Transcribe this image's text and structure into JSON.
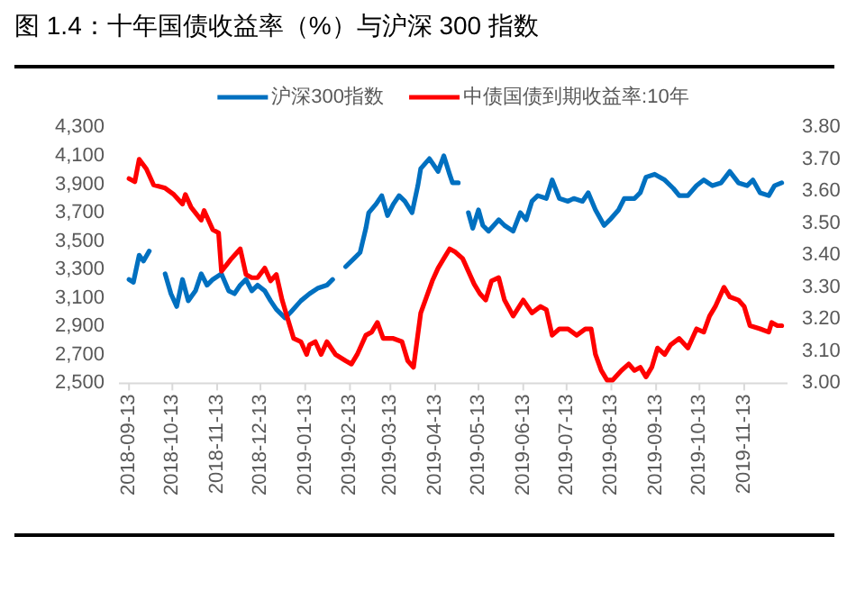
{
  "chart_data": {
    "type": "line",
    "title": "图 1.4：十年国债收益率（%）与沪深 300 指数",
    "legend": "top",
    "xlim": [
      "2018-09-06",
      "2019-12-13"
    ],
    "xticks": [
      "2018-09-13",
      "2018-10-13",
      "2018-11-13",
      "2018-12-13",
      "2019-01-13",
      "2019-02-13",
      "2019-03-13",
      "2019-04-13",
      "2019-05-13",
      "2019-06-13",
      "2019-07-13",
      "2019-08-13",
      "2019-09-13",
      "2019-10-13",
      "2019-11-13"
    ],
    "ylim": [
      2500,
      4300
    ],
    "yticks": [
      {
        "value": 2500,
        "label": "2,500"
      },
      {
        "value": 2700,
        "label": "2,700"
      },
      {
        "value": 2900,
        "label": "2,900"
      },
      {
        "value": 3100,
        "label": "3,100"
      },
      {
        "value": 3300,
        "label": "3,300"
      },
      {
        "value": 3500,
        "label": "3,500"
      },
      {
        "value": 3700,
        "label": "3,700"
      },
      {
        "value": 3900,
        "label": "3,900"
      },
      {
        "value": 4100,
        "label": "4,100"
      },
      {
        "value": 4300,
        "label": "4,300"
      }
    ],
    "y2lim": [
      3.0,
      3.8
    ],
    "y2ticks": [
      {
        "value": 3.0,
        "label": "3.00"
      },
      {
        "value": 3.1,
        "label": "3.10"
      },
      {
        "value": 3.2,
        "label": "3.20"
      },
      {
        "value": 3.3,
        "label": "3.30"
      },
      {
        "value": 3.4,
        "label": "3.40"
      },
      {
        "value": 3.5,
        "label": "3.50"
      },
      {
        "value": 3.6,
        "label": "3.60"
      },
      {
        "value": 3.7,
        "label": "3.70"
      },
      {
        "value": 3.8,
        "label": "3.80"
      }
    ],
    "series": [
      {
        "name": "沪深300指数",
        "color": "#0070c0",
        "x": [
          "2018-09-13",
          "2018-09-16",
          "2018-09-20",
          "2018-09-23",
          "2018-09-27",
          "2018-10-03",
          "2018-10-08",
          "2018-10-12",
          "2018-10-16",
          "2018-10-20",
          "2018-10-24",
          "2018-10-29",
          "2018-11-02",
          "2018-11-06",
          "2018-11-10",
          "2018-11-16",
          "2018-11-21",
          "2018-11-25",
          "2018-11-29",
          "2018-12-03",
          "2018-12-07",
          "2018-12-11",
          "2018-12-16",
          "2018-12-20",
          "2018-12-24",
          "2018-12-30",
          "2019-01-03",
          "2019-01-10",
          "2019-01-16",
          "2019-01-22",
          "2019-01-28",
          "2019-02-01",
          "2019-02-05",
          "2019-02-10",
          "2019-02-16",
          "2019-02-20",
          "2019-02-24",
          "2019-02-26",
          "2019-03-03",
          "2019-03-07",
          "2019-03-11",
          "2019-03-15",
          "2019-03-19",
          "2019-03-23",
          "2019-03-28",
          "2019-04-01",
          "2019-04-03",
          "2019-04-09",
          "2019-04-15",
          "2019-04-19",
          "2019-04-23",
          "2019-04-25",
          "2019-04-29",
          "2019-05-02",
          "2019-05-06",
          "2019-05-09",
          "2019-05-13",
          "2019-05-16",
          "2019-05-20",
          "2019-05-27",
          "2019-05-31",
          "2019-06-06",
          "2019-06-11",
          "2019-06-15",
          "2019-06-19",
          "2019-06-23",
          "2019-06-29",
          "2019-07-03",
          "2019-07-08",
          "2019-07-14",
          "2019-07-18",
          "2019-07-24",
          "2019-07-28",
          "2019-08-02",
          "2019-08-08",
          "2019-08-12",
          "2019-08-18",
          "2019-08-22",
          "2019-08-29",
          "2019-09-02",
          "2019-09-06",
          "2019-09-12",
          "2019-09-19",
          "2019-09-25",
          "2019-09-29",
          "2019-10-05",
          "2019-10-11",
          "2019-10-16",
          "2019-10-22",
          "2019-10-28",
          "2019-11-03",
          "2019-11-09",
          "2019-11-15",
          "2019-11-19",
          "2019-11-24",
          "2019-11-30",
          "2019-12-04",
          "2019-12-09"
        ],
        "values": [
          3230,
          3210,
          3400,
          3360,
          3430,
          null,
          3270,
          3130,
          3040,
          3230,
          3080,
          3150,
          3270,
          3190,
          3230,
          3270,
          3150,
          3130,
          3190,
          3230,
          3150,
          3190,
          3150,
          3080,
          3020,
          2960,
          3000,
          3080,
          3130,
          3170,
          3190,
          3230,
          null,
          3320,
          3380,
          3420,
          3590,
          3700,
          3760,
          3820,
          3680,
          3760,
          3820,
          3780,
          3700,
          3890,
          4010,
          4080,
          3990,
          4100,
          3970,
          3910,
          3910,
          null,
          3700,
          3590,
          3720,
          3610,
          3570,
          3650,
          3610,
          3570,
          3700,
          3650,
          3780,
          3820,
          3800,
          3930,
          3800,
          3780,
          3800,
          3780,
          3840,
          3720,
          3610,
          3650,
          3720,
          3800,
          3800,
          3840,
          3950,
          3970,
          3930,
          3870,
          3820,
          3820,
          3890,
          3930,
          3890,
          3910,
          3990,
          3910,
          3890,
          3930,
          3840,
          3820,
          3890,
          3910
        ]
      },
      {
        "name": "中债国债到期收益率:10年",
        "color": "#ff0000",
        "axis": "y2",
        "x": [
          "2018-09-13",
          "2018-09-17",
          "2018-09-20",
          "2018-09-25",
          "2018-09-30",
          "2018-10-08",
          "2018-10-14",
          "2018-10-20",
          "2018-10-22",
          "2018-10-26",
          "2018-11-02",
          "2018-11-04",
          "2018-11-10",
          "2018-11-14",
          "2018-11-16",
          "2018-11-23",
          "2018-11-29",
          "2018-12-03",
          "2018-12-07",
          "2018-12-11",
          "2018-12-16",
          "2018-12-20",
          "2018-12-24",
          "2018-12-28",
          "2019-01-01",
          "2019-01-05",
          "2019-01-10",
          "2019-01-14",
          "2019-01-16",
          "2019-01-20",
          "2019-01-24",
          "2019-01-28",
          "2019-02-03",
          "2019-02-10",
          "2019-02-14",
          "2019-02-18",
          "2019-02-24",
          "2019-02-28",
          "2019-03-04",
          "2019-03-08",
          "2019-03-15",
          "2019-03-21",
          "2019-03-25",
          "2019-03-29",
          "2019-04-03",
          "2019-04-07",
          "2019-04-11",
          "2019-04-15",
          "2019-04-19",
          "2019-04-23",
          "2019-04-27",
          "2019-05-02",
          "2019-05-06",
          "2019-05-10",
          "2019-05-14",
          "2019-05-18",
          "2019-05-22",
          "2019-05-27",
          "2019-05-31",
          "2019-06-06",
          "2019-06-13",
          "2019-06-19",
          "2019-06-25",
          "2019-06-29",
          "2019-07-03",
          "2019-07-08",
          "2019-07-14",
          "2019-07-20",
          "2019-07-26",
          "2019-07-30",
          "2019-08-02",
          "2019-08-06",
          "2019-08-10",
          "2019-08-14",
          "2019-08-20",
          "2019-08-25",
          "2019-08-29",
          "2019-09-02",
          "2019-09-06",
          "2019-09-10",
          "2019-09-14",
          "2019-09-19",
          "2019-09-23",
          "2019-09-29",
          "2019-10-05",
          "2019-10-11",
          "2019-10-16",
          "2019-10-20",
          "2019-10-24",
          "2019-10-30",
          "2019-11-03",
          "2019-11-09",
          "2019-11-13",
          "2019-11-17",
          "2019-11-24",
          "2019-11-30",
          "2019-12-02",
          "2019-12-06",
          "2019-12-09"
        ],
        "values": [
          3.64,
          3.63,
          3.7,
          3.67,
          3.62,
          3.61,
          3.59,
          3.56,
          3.59,
          3.55,
          3.51,
          3.54,
          3.48,
          3.47,
          3.35,
          3.39,
          3.42,
          3.34,
          3.33,
          3.33,
          3.36,
          3.32,
          3.34,
          3.26,
          3.2,
          3.14,
          3.13,
          3.09,
          3.12,
          3.13,
          3.09,
          3.13,
          3.09,
          3.07,
          3.06,
          3.09,
          3.15,
          3.16,
          3.19,
          3.14,
          3.14,
          3.13,
          3.07,
          3.05,
          3.22,
          3.27,
          3.32,
          3.36,
          3.39,
          3.42,
          3.41,
          3.39,
          3.35,
          3.31,
          3.28,
          3.26,
          3.32,
          3.33,
          3.26,
          3.21,
          3.26,
          3.22,
          3.24,
          3.23,
          3.15,
          3.17,
          3.17,
          3.15,
          3.17,
          3.17,
          3.09,
          3.04,
          3.01,
          3.01,
          3.04,
          3.06,
          3.04,
          3.05,
          3.02,
          3.05,
          3.11,
          3.09,
          3.12,
          3.14,
          3.11,
          3.17,
          3.16,
          3.21,
          3.24,
          3.3,
          3.27,
          3.26,
          3.24,
          3.18,
          3.17,
          3.16,
          3.19,
          3.18,
          3.18
        ]
      }
    ]
  }
}
